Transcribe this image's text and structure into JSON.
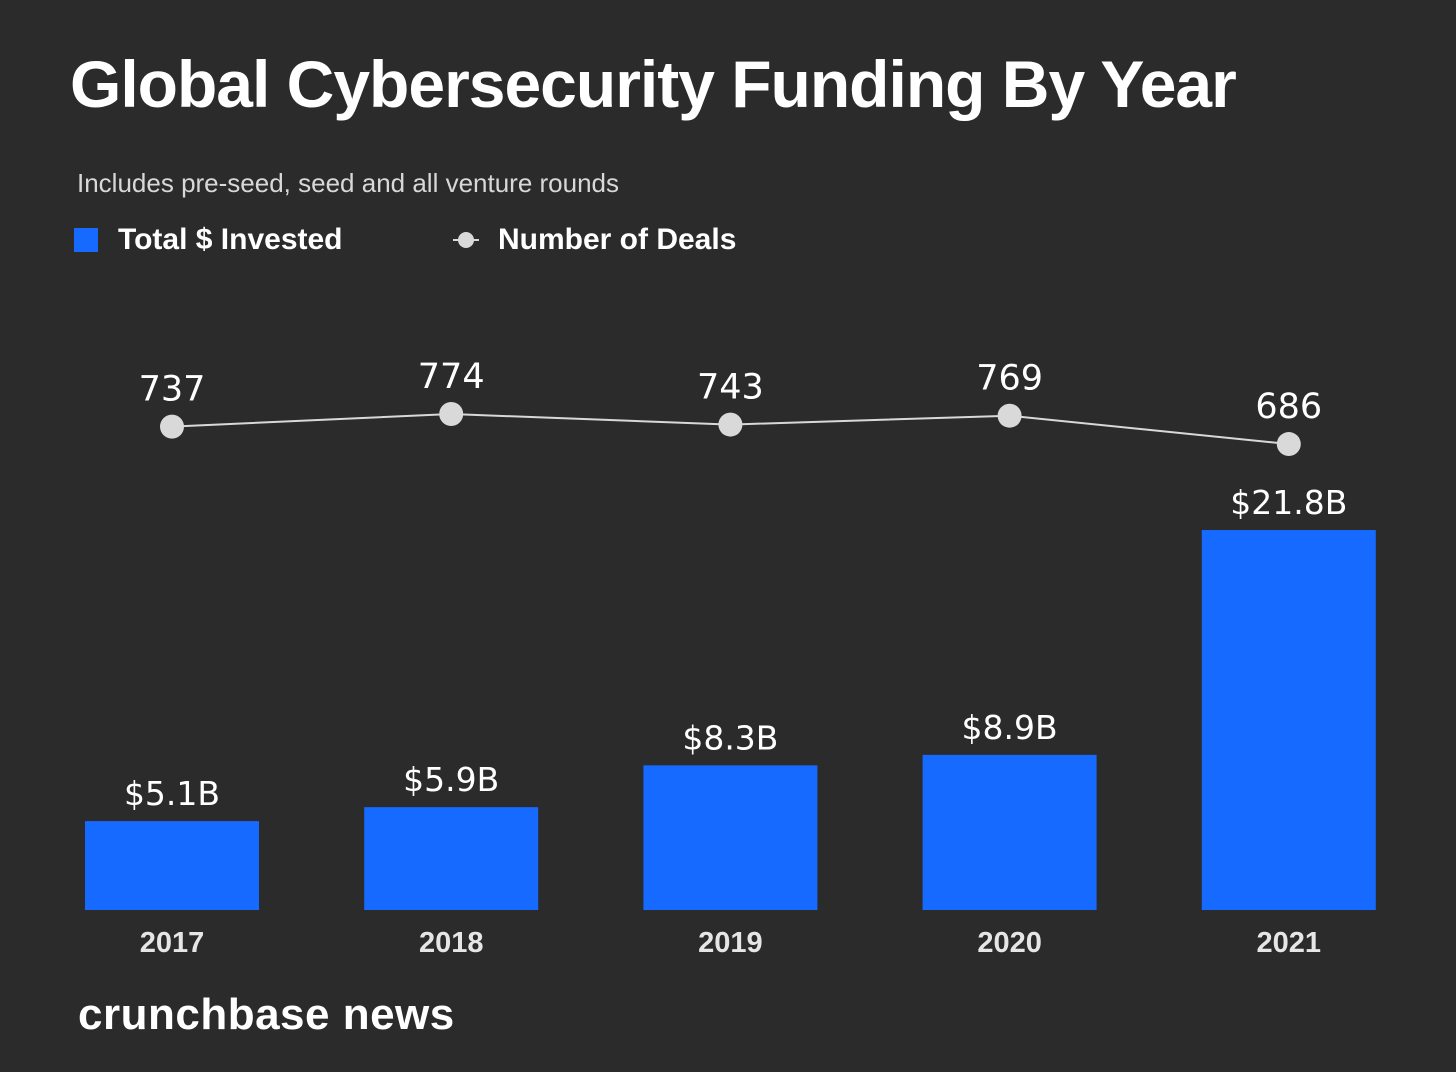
{
  "page": {
    "title": "Global Cybersecurity Funding By Year",
    "subtitle": "Includes pre-seed, seed and all venture rounds",
    "brand": "crunchbase news"
  },
  "colors": {
    "background": "#2b2b2b",
    "bar": "#166aff",
    "line": "#d9d9d9",
    "marker": "#d9d9d9",
    "text": "#ffffff",
    "tick_text": "#e6e6e6"
  },
  "chart_data": {
    "type": "bar",
    "title": "Global Cybersecurity Funding By Year",
    "subtitle": "Includes pre-seed, seed and all venture rounds",
    "categories": [
      "2017",
      "2018",
      "2019",
      "2020",
      "2021"
    ],
    "legend": {
      "placement": "top-left",
      "entries": [
        {
          "name": "Total $ Invested",
          "marker": "square"
        },
        {
          "name": "Number of Deals",
          "marker": "line-dot"
        }
      ]
    },
    "series": [
      {
        "name": "Total $ Invested",
        "type": "bar",
        "values": [
          5.1,
          5.9,
          8.3,
          8.9,
          21.8
        ],
        "labels": [
          "$5.1B",
          "$5.9B",
          "$8.3B",
          "$8.9B",
          "$21.8B"
        ],
        "unit": "$B"
      },
      {
        "name": "Number of Deals",
        "type": "line",
        "values": [
          737,
          774,
          743,
          769,
          686
        ],
        "labels": [
          "737",
          "774",
          "743",
          "769",
          "686"
        ]
      }
    ],
    "grid": false,
    "y_axis_visible": false
  }
}
